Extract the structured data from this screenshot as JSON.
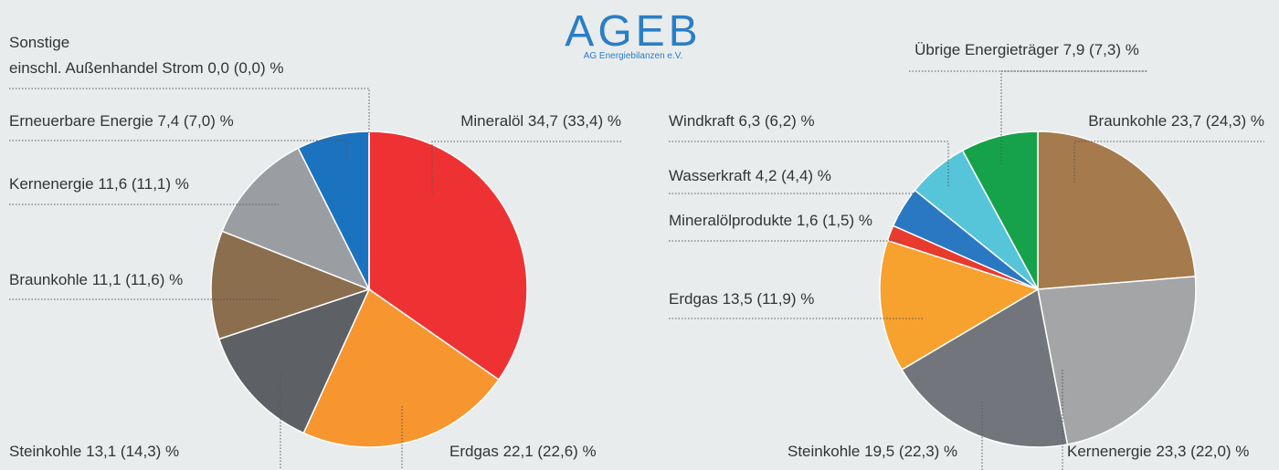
{
  "header": {
    "title": "AGEB",
    "subtitle": "AG Energiebilanzen e.V."
  },
  "chart_data": [
    {
      "type": "pie",
      "values": [
        34.7,
        22.1,
        13.1,
        11.1,
        11.6,
        7.4,
        0.0
      ],
      "value_labels": [
        "Mineralöl 34,7 (33,4) %",
        "Erdgas 22,1 (22,6) %",
        "Steinkohle 13,1 (14,3) %",
        "Braunkohle 11,1 (11,6) %",
        "Kernenergie 11,6 (11,1) %",
        "Erneuerbare Energie 7,4 (7,0) %",
        [
          "Sonstige",
          "einschl. Außenhandel Strom 0,0 (0,0) %"
        ]
      ],
      "colors": [
        "#ee3233",
        "#f7952f",
        "#5d6064",
        "#8b6e4e",
        "#9a9ea3",
        "#1b72bf",
        "#999999"
      ]
    },
    {
      "type": "pie",
      "values": [
        23.7,
        23.3,
        19.5,
        13.5,
        1.6,
        4.2,
        6.3,
        7.9
      ],
      "value_labels": [
        "Braunkohle 23,7 (24,3) %",
        "Kernenergie 23,3 (22,0) %",
        "Steinkohle 19,5 (22,3) %",
        "Erdgas 13,5 (11,9) %",
        "Mineralölprodukte 1,6 (1,5) %",
        "Wasserkraft 4,2 (4,4) %",
        "Windkraft 6,3 (6,2) %",
        "Übrige Energieträger 7,9 (7,3) %"
      ],
      "colors": [
        "#a57a4c",
        "#a3a5a7",
        "#72767c",
        "#f7a12e",
        "#e93a2e",
        "#2a78c2",
        "#56c5d9",
        "#16a24a"
      ]
    }
  ]
}
